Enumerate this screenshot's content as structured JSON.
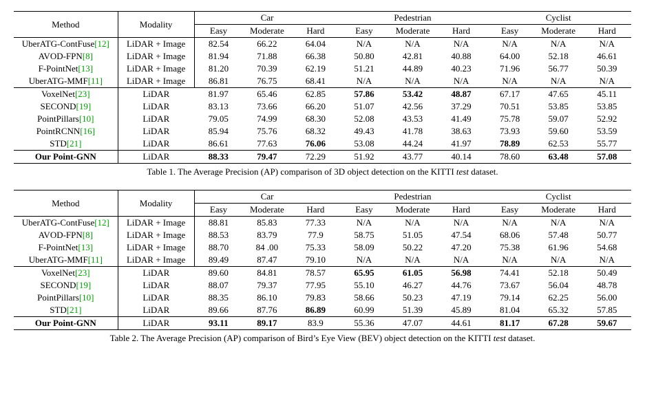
{
  "header": {
    "method": "Method",
    "modality": "Modality",
    "groups": [
      "Car",
      "Pedestrian",
      "Cyclist"
    ],
    "levels": [
      "Easy",
      "Moderate",
      "Hard"
    ]
  },
  "table1": {
    "caption_prefix": "Table 1. The Average Precision (AP) comparison of 3D object detection on the KITTI ",
    "caption_italic": "test",
    "caption_suffix": " dataset.",
    "rows": [
      {
        "method": "UberATG-ContFuse",
        "ref": "[12]",
        "modality": "LiDAR + Image",
        "vals": [
          "82.54",
          "66.22",
          "64.04",
          "N/A",
          "N/A",
          "N/A",
          "N/A",
          "N/A",
          "N/A"
        ],
        "bold": [
          0,
          0,
          0,
          0,
          0,
          0,
          0,
          0,
          0
        ],
        "boldMethod": 0,
        "modRight": 1,
        "top": 1
      },
      {
        "method": "AVOD-FPN",
        "ref": "[8]",
        "modality": "LiDAR + Image",
        "vals": [
          "81.94",
          "71.88",
          "66.38",
          "50.80",
          "42.81",
          "40.88",
          "64.00",
          "52.18",
          "46.61"
        ],
        "bold": [
          0,
          0,
          0,
          0,
          0,
          0,
          0,
          0,
          0
        ],
        "boldMethod": 0,
        "modRight": 1
      },
      {
        "method": "F-PointNet",
        "ref": "[13]",
        "modality": "LiDAR + Image",
        "vals": [
          "81.20",
          "70.39",
          "62.19",
          "51.21",
          "44.89",
          "40.23",
          "71.96",
          "56.77",
          "50.39"
        ],
        "bold": [
          0,
          0,
          0,
          0,
          0,
          0,
          0,
          0,
          0
        ],
        "boldMethod": 0,
        "modRight": 1
      },
      {
        "method": "UberATG-MMF",
        "ref": "[11]",
        "modality": "LiDAR + Image",
        "vals": [
          "86.81",
          "76.75",
          "68.41",
          "N/A",
          "N/A",
          "N/A",
          "N/A",
          "N/A",
          "N/A"
        ],
        "bold": [
          0,
          0,
          0,
          0,
          0,
          0,
          0,
          0,
          0
        ],
        "boldMethod": 0,
        "modRight": 1,
        "bot": 1
      },
      {
        "method": "VoxelNet",
        "ref": "[23]",
        "modality": "LiDAR",
        "vals": [
          "81.97",
          "65.46",
          "62.85",
          "57.86",
          "53.42",
          "48.87",
          "67.17",
          "47.65",
          "45.11"
        ],
        "bold": [
          0,
          0,
          0,
          1,
          1,
          1,
          0,
          0,
          0
        ],
        "boldMethod": 0,
        "modRight": 0
      },
      {
        "method": "SECOND",
        "ref": "[19]",
        "modality": "LiDAR",
        "vals": [
          "83.13",
          "73.66",
          "66.20",
          "51.07",
          "42.56",
          "37.29",
          "70.51",
          "53.85",
          "53.85"
        ],
        "bold": [
          0,
          0,
          0,
          0,
          0,
          0,
          0,
          0,
          0
        ],
        "boldMethod": 0,
        "modRight": 0
      },
      {
        "method": "PointPillars",
        "ref": "[10]",
        "modality": "LiDAR",
        "vals": [
          "79.05",
          "74.99",
          "68.30",
          "52.08",
          "43.53",
          "41.49",
          "75.78",
          "59.07",
          "52.92"
        ],
        "bold": [
          0,
          0,
          0,
          0,
          0,
          0,
          0,
          0,
          0
        ],
        "boldMethod": 0,
        "modRight": 0
      },
      {
        "method": "PointRCNN",
        "ref": "[16]",
        "modality": "LiDAR",
        "vals": [
          "85.94",
          "75.76",
          "68.32",
          "49.43",
          "41.78",
          "38.63",
          "73.93",
          "59.60",
          "53.59"
        ],
        "bold": [
          0,
          0,
          0,
          0,
          0,
          0,
          0,
          0,
          0
        ],
        "boldMethod": 0,
        "modRight": 0
      },
      {
        "method": "STD",
        "ref": "[21]",
        "modality": "LiDAR",
        "vals": [
          "86.61",
          "77.63",
          "76.06",
          "53.08",
          "44.24",
          "41.97",
          "78.89",
          "62.53",
          "55.77"
        ],
        "bold": [
          0,
          0,
          1,
          0,
          0,
          0,
          1,
          0,
          0
        ],
        "boldMethod": 0,
        "modRight": 0,
        "bot": 1
      },
      {
        "method": "Our Point-GNN",
        "ref": "",
        "modality": "LiDAR",
        "vals": [
          "88.33",
          "79.47",
          "72.29",
          "51.92",
          "43.77",
          "40.14",
          "78.60",
          "63.48",
          "57.08"
        ],
        "bold": [
          1,
          1,
          0,
          0,
          0,
          0,
          0,
          1,
          1
        ],
        "boldMethod": 1,
        "modRight": 0,
        "bot": 1
      }
    ]
  },
  "table2": {
    "caption_prefix": "Table 2. The Average Precision (AP) comparison of Bird’s Eye View (BEV) object detection on the KITTI ",
    "caption_italic": "test",
    "caption_suffix": " dataset.",
    "rows": [
      {
        "method": "UberATG-ContFuse",
        "ref": "[12]",
        "modality": "LiDAR + Image",
        "vals": [
          "88.81",
          "85.83",
          "77.33",
          "N/A",
          "N/A",
          "N/A",
          "N/A",
          "N/A",
          "N/A"
        ],
        "bold": [
          0,
          0,
          0,
          0,
          0,
          0,
          0,
          0,
          0
        ],
        "boldMethod": 0,
        "modRight": 1,
        "top": 1
      },
      {
        "method": "AVOD-FPN",
        "ref": "[8]",
        "modality": "LiDAR + Image",
        "vals": [
          "88.53",
          "83.79",
          "77.9",
          "58.75",
          "51.05",
          "47.54",
          "68.06",
          "57.48",
          "50.77"
        ],
        "bold": [
          0,
          0,
          0,
          0,
          0,
          0,
          0,
          0,
          0
        ],
        "boldMethod": 0,
        "modRight": 1
      },
      {
        "method": "F-PointNet",
        "ref": "[13]",
        "modality": "LiDAR + Image",
        "vals": [
          "88.70",
          "84 .00",
          "75.33",
          "58.09",
          "50.22",
          "47.20",
          "75.38",
          "61.96",
          "54.68"
        ],
        "bold": [
          0,
          0,
          0,
          0,
          0,
          0,
          0,
          0,
          0
        ],
        "boldMethod": 0,
        "modRight": 1
      },
      {
        "method": "UberATG-MMF",
        "ref": "[11]",
        "modality": "LiDAR + Image",
        "vals": [
          "89.49",
          "87.47",
          "79.10",
          "N/A",
          "N/A",
          "N/A",
          "N/A",
          "N/A",
          "N/A"
        ],
        "bold": [
          0,
          0,
          0,
          0,
          0,
          0,
          0,
          0,
          0
        ],
        "boldMethod": 0,
        "modRight": 1,
        "bot": 1
      },
      {
        "method": "VoxelNet",
        "ref": "[23]",
        "modality": "LiDAR",
        "vals": [
          "89.60",
          "84.81",
          "78.57",
          "65.95",
          "61.05",
          "56.98",
          "74.41",
          "52.18",
          "50.49"
        ],
        "bold": [
          0,
          0,
          0,
          1,
          1,
          1,
          0,
          0,
          0
        ],
        "boldMethod": 0,
        "modRight": 0
      },
      {
        "method": "SECOND",
        "ref": "[19]",
        "modality": "LiDAR",
        "vals": [
          "88.07",
          "79.37",
          "77.95",
          "55.10",
          "46.27",
          "44.76",
          "73.67",
          "56.04",
          "48.78"
        ],
        "bold": [
          0,
          0,
          0,
          0,
          0,
          0,
          0,
          0,
          0
        ],
        "boldMethod": 0,
        "modRight": 0
      },
      {
        "method": "PointPillars",
        "ref": "[10]",
        "modality": "LiDAR",
        "vals": [
          "88.35",
          "86.10",
          "79.83",
          "58.66",
          "50.23",
          "47.19",
          "79.14",
          "62.25",
          "56.00"
        ],
        "bold": [
          0,
          0,
          0,
          0,
          0,
          0,
          0,
          0,
          0
        ],
        "boldMethod": 0,
        "modRight": 0
      },
      {
        "method": "STD",
        "ref": "[21]",
        "modality": "LiDAR",
        "vals": [
          "89.66",
          "87.76",
          "86.89",
          "60.99",
          "51.39",
          "45.89",
          "81.04",
          "65.32",
          "57.85"
        ],
        "bold": [
          0,
          0,
          1,
          0,
          0,
          0,
          0,
          0,
          0
        ],
        "boldMethod": 0,
        "modRight": 0,
        "bot": 1
      },
      {
        "method": "Our Point-GNN",
        "ref": "",
        "modality": "LiDAR",
        "vals": [
          "93.11",
          "89.17",
          "83.9",
          "55.36",
          "47.07",
          "44.61",
          "81.17",
          "67.28",
          "59.67"
        ],
        "bold": [
          1,
          1,
          0,
          0,
          0,
          0,
          1,
          1,
          1
        ],
        "boldMethod": 1,
        "modRight": 0,
        "bot": 1
      }
    ]
  }
}
